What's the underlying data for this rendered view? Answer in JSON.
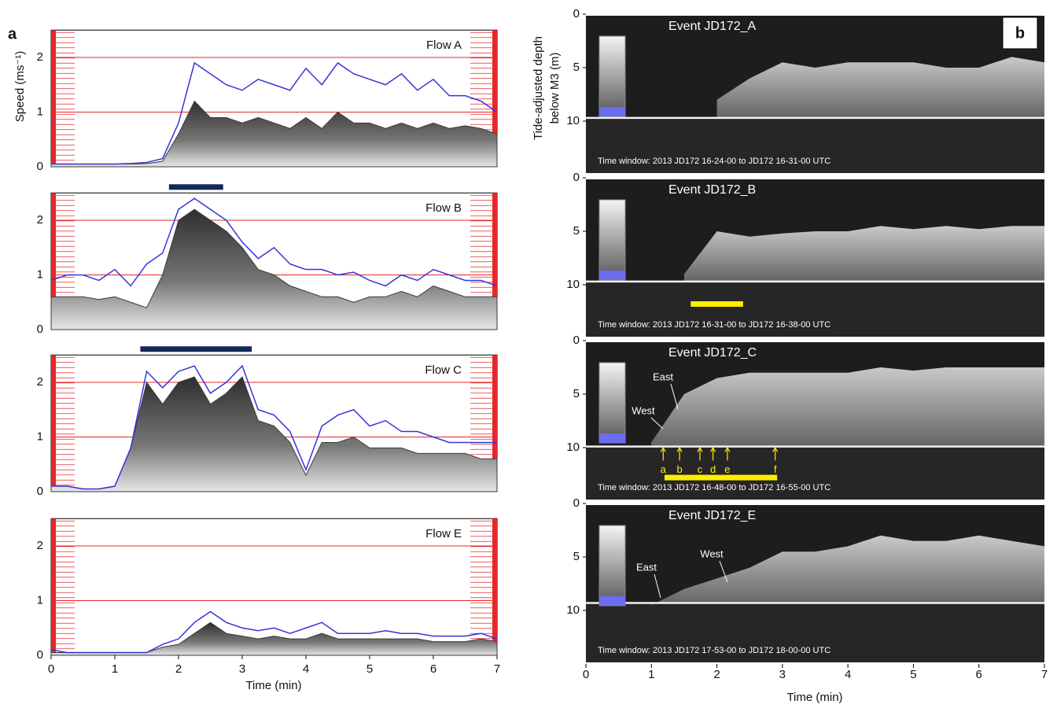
{
  "figure": {
    "panel_a_label": "a",
    "panel_b_label": "b",
    "a_ylabel": "Speed (ms⁻¹)",
    "a_xlabel": "Time (min)",
    "b_ylabel": [
      "Tide-adjusted depth",
      "below M3 (m)"
    ],
    "b_xlabel": "Time (min)"
  },
  "chart_data": [
    {
      "type": "line",
      "title": "Flow A",
      "x": [
        0,
        0.25,
        0.5,
        0.75,
        1,
        1.25,
        1.5,
        1.75,
        2,
        2.25,
        2.5,
        2.75,
        3,
        3.25,
        3.5,
        3.75,
        4,
        4.25,
        4.5,
        4.75,
        5,
        5.25,
        5.5,
        5.75,
        6,
        6.25,
        6.5,
        6.75,
        7
      ],
      "xlim": [
        0,
        7
      ],
      "ylim": [
        0,
        2.5
      ],
      "yticks": [
        0,
        1,
        2
      ],
      "grid": true,
      "grid_color": "#e8262a",
      "series": [
        {
          "color": "#3535d8",
          "values": [
            0.05,
            0.05,
            0.05,
            0.05,
            0.05,
            0.06,
            0.08,
            0.15,
            0.8,
            1.9,
            1.7,
            1.5,
            1.4,
            1.6,
            1.5,
            1.4,
            1.8,
            1.5,
            1.9,
            1.7,
            1.6,
            1.5,
            1.7,
            1.4,
            1.6,
            1.3,
            1.3,
            1.2,
            1.0
          ]
        },
        {
          "color": "#3a3a3a",
          "values": [
            0.05,
            0.05,
            0.05,
            0.05,
            0.05,
            0.05,
            0.06,
            0.1,
            0.6,
            1.2,
            0.9,
            0.9,
            0.8,
            0.9,
            0.8,
            0.7,
            0.9,
            0.7,
            1.0,
            0.8,
            0.8,
            0.7,
            0.8,
            0.7,
            0.8,
            0.7,
            0.75,
            0.7,
            0.6
          ]
        }
      ]
    },
    {
      "type": "line",
      "title": "Flow B",
      "x": [
        0,
        0.25,
        0.5,
        0.75,
        1,
        1.25,
        1.5,
        1.75,
        2,
        2.25,
        2.5,
        2.75,
        3,
        3.25,
        3.5,
        3.75,
        4,
        4.25,
        4.5,
        4.75,
        5,
        5.25,
        5.5,
        5.75,
        6,
        6.25,
        6.5,
        6.75,
        7
      ],
      "xlim": [
        0,
        7
      ],
      "ylim": [
        0,
        2.5
      ],
      "yticks": [
        0,
        1,
        2
      ],
      "grid": true,
      "grid_color": "#e8262a",
      "bar_span": [
        1.85,
        2.7
      ],
      "bar_color": "#14275a",
      "series": [
        {
          "color": "#3535d8",
          "values": [
            0.9,
            1.0,
            1.0,
            0.9,
            1.1,
            0.8,
            1.2,
            1.4,
            2.2,
            2.4,
            2.2,
            2.0,
            1.6,
            1.3,
            1.5,
            1.2,
            1.1,
            1.1,
            1.0,
            1.05,
            0.9,
            0.8,
            1.0,
            0.9,
            1.1,
            1.0,
            0.9,
            0.9,
            0.8
          ]
        },
        {
          "color": "#3a3a3a",
          "values": [
            0.6,
            0.6,
            0.6,
            0.55,
            0.6,
            0.5,
            0.4,
            1.0,
            2.0,
            2.2,
            2.0,
            1.8,
            1.5,
            1.1,
            1.0,
            0.8,
            0.7,
            0.6,
            0.6,
            0.5,
            0.6,
            0.6,
            0.7,
            0.6,
            0.8,
            0.7,
            0.6,
            0.6,
            0.6
          ]
        }
      ]
    },
    {
      "type": "line",
      "title": "Flow C",
      "x": [
        0,
        0.25,
        0.5,
        0.75,
        1,
        1.25,
        1.5,
        1.75,
        2,
        2.25,
        2.5,
        2.75,
        3,
        3.25,
        3.5,
        3.75,
        4,
        4.25,
        4.5,
        4.75,
        5,
        5.25,
        5.5,
        5.75,
        6,
        6.25,
        6.5,
        6.75,
        7
      ],
      "xlim": [
        0,
        7
      ],
      "ylim": [
        0,
        2.5
      ],
      "yticks": [
        0,
        1,
        2
      ],
      "grid": true,
      "grid_color": "#e8262a",
      "bar_span": [
        1.4,
        3.15
      ],
      "bar_color": "#14275a",
      "series": [
        {
          "color": "#3535d8",
          "values": [
            0.1,
            0.1,
            0.05,
            0.05,
            0.1,
            0.8,
            2.2,
            1.9,
            2.2,
            2.3,
            1.8,
            2.0,
            2.3,
            1.5,
            1.4,
            1.1,
            0.4,
            1.2,
            1.4,
            1.5,
            1.2,
            1.3,
            1.1,
            1.1,
            1.0,
            0.9,
            0.9,
            0.9,
            0.9
          ]
        },
        {
          "color": "#3a3a3a",
          "values": [
            0.1,
            0.1,
            0.05,
            0.05,
            0.1,
            0.8,
            2.0,
            1.6,
            2.0,
            2.1,
            1.6,
            1.8,
            2.1,
            1.3,
            1.2,
            0.9,
            0.3,
            0.9,
            0.9,
            1.0,
            0.8,
            0.8,
            0.8,
            0.7,
            0.7,
            0.7,
            0.7,
            0.6,
            0.6
          ]
        }
      ]
    },
    {
      "type": "line",
      "title": "Flow E",
      "x": [
        0,
        0.25,
        0.5,
        0.75,
        1,
        1.25,
        1.5,
        1.75,
        2,
        2.25,
        2.5,
        2.75,
        3,
        3.25,
        3.5,
        3.75,
        4,
        4.25,
        4.5,
        4.75,
        5,
        5.25,
        5.5,
        5.75,
        6,
        6.25,
        6.5,
        6.75,
        7
      ],
      "xlim": [
        0,
        7
      ],
      "ylim": [
        0,
        2.5
      ],
      "yticks": [
        0,
        1,
        2
      ],
      "xticks": [
        0,
        1,
        2,
        3,
        4,
        5,
        6,
        7
      ],
      "grid": true,
      "grid_color": "#e8262a",
      "series": [
        {
          "color": "#3535d8",
          "values": [
            0.1,
            0.05,
            0.05,
            0.05,
            0.05,
            0.05,
            0.05,
            0.2,
            0.3,
            0.6,
            0.8,
            0.6,
            0.5,
            0.45,
            0.5,
            0.4,
            0.5,
            0.6,
            0.4,
            0.4,
            0.4,
            0.45,
            0.4,
            0.4,
            0.35,
            0.35,
            0.35,
            0.4,
            0.3
          ]
        },
        {
          "color": "#3a3a3a",
          "values": [
            0.05,
            0.05,
            0.05,
            0.05,
            0.05,
            0.05,
            0.05,
            0.15,
            0.2,
            0.4,
            0.6,
            0.4,
            0.35,
            0.3,
            0.35,
            0.3,
            0.3,
            0.4,
            0.3,
            0.3,
            0.3,
            0.3,
            0.3,
            0.3,
            0.25,
            0.25,
            0.25,
            0.3,
            0.25
          ]
        }
      ]
    },
    {
      "type": "echogram",
      "title": "Event JD172_A",
      "note": "Time window: 2013 JD172 16-24-00 to JD172 16-31-00 UTC",
      "x": [
        0,
        0.5,
        1,
        1.5,
        2,
        2.5,
        3,
        3.5,
        4,
        4.5,
        5,
        5.5,
        6,
        6.5,
        7
      ],
      "plume_top": [
        null,
        null,
        null,
        null,
        8.0,
        6.0,
        4.5,
        5.0,
        4.5,
        4.5,
        4.5,
        5,
        5,
        4,
        4.5
      ],
      "seabed_depth": 9.7,
      "xlim": [
        0,
        7
      ],
      "ylim": [
        0,
        15
      ],
      "yticks": [
        0,
        5,
        10
      ]
    },
    {
      "type": "echogram",
      "title": "Event JD172_B",
      "note": "Time window: 2013 JD172 16-31-00 to JD172 16-38-00 UTC",
      "x": [
        0,
        0.5,
        1,
        1.5,
        2,
        2.5,
        3,
        3.5,
        4,
        4.5,
        5,
        5.5,
        6,
        6.5,
        7
      ],
      "plume_top": [
        null,
        null,
        null,
        9,
        5,
        5.5,
        5.2,
        5,
        5,
        4.5,
        4.8,
        4.5,
        4.8,
        4.5,
        4.5
      ],
      "seabed_depth": 9.7,
      "xlim": [
        0,
        7
      ],
      "ylim": [
        0,
        15
      ],
      "yticks": [
        0,
        5,
        10
      ],
      "highlight": [
        1.6,
        2.4
      ],
      "highlight_color": "#ffee00"
    },
    {
      "type": "echogram",
      "title": "Event JD172_C",
      "note": "Time window: 2013 JD172 16-48-00 to JD172 16-55-00 UTC",
      "x": [
        0,
        0.5,
        1,
        1.5,
        2,
        2.5,
        3,
        3.5,
        4,
        4.5,
        5,
        5.5,
        6,
        6.5,
        7
      ],
      "plume_top": [
        null,
        null,
        9.5,
        5,
        3.5,
        3,
        3,
        3,
        3,
        2.5,
        2.8,
        2.5,
        2.5,
        2.5,
        2.5
      ],
      "seabed_depth": 9.9,
      "xlim": [
        0,
        7
      ],
      "ylim": [
        0,
        15
      ],
      "yticks": [
        0,
        5,
        10
      ],
      "highlight": [
        1.2,
        2.92
      ],
      "highlight_color": "#ffee00",
      "annotations": [
        "East",
        "West"
      ],
      "markers": [
        {
          "label": "a",
          "x": 1.18
        },
        {
          "label": "b",
          "x": 1.43
        },
        {
          "label": "c",
          "x": 1.74
        },
        {
          "label": "d",
          "x": 1.94
        },
        {
          "label": "e",
          "x": 2.16
        },
        {
          "label": "f",
          "x": 2.89
        }
      ]
    },
    {
      "type": "echogram",
      "title": "Event JD172_E",
      "note": "Time window: 2013 JD172 17-53-00 to JD172 18-00-00 UTC",
      "x": [
        0,
        0.5,
        1,
        1.5,
        2,
        2.5,
        3,
        3.5,
        4,
        4.5,
        5,
        5.5,
        6,
        6.5,
        7
      ],
      "plume_top": [
        null,
        null,
        9.5,
        8,
        7,
        6,
        4.5,
        4.5,
        4,
        3,
        3.5,
        3.5,
        3,
        3.5,
        4
      ],
      "seabed_depth": 9.3,
      "xlim": [
        0,
        7
      ],
      "ylim": [
        0,
        15
      ],
      "yticks": [
        0,
        5,
        10
      ],
      "xticks": [
        0,
        1,
        2,
        3,
        4,
        5,
        6,
        7
      ],
      "annotations": [
        "East",
        "West"
      ]
    }
  ]
}
